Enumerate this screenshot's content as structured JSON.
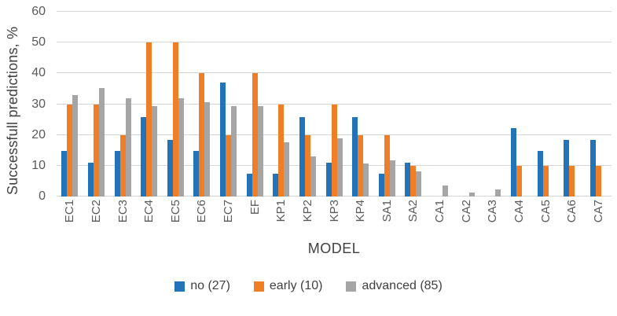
{
  "chart_data": {
    "type": "bar",
    "title": "",
    "ylabel": "Successfull predictions, %",
    "xlabel": "MODEL",
    "ylim": [
      0,
      60
    ],
    "yticks": [
      0,
      10,
      20,
      30,
      40,
      50,
      60
    ],
    "grid": true,
    "legend_position": "bottom",
    "categories": [
      "EC1",
      "EC2",
      "EC3",
      "EC4",
      "EC5",
      "EC6",
      "EC7",
      "EF",
      "KP1",
      "KP2",
      "KP3",
      "KP4",
      "SA1",
      "SA2",
      "CA1",
      "CA2",
      "CA3",
      "CA4",
      "CA5",
      "CA6",
      "CA7"
    ],
    "series": [
      {
        "name": "no (27)",
        "color": "#2273B8",
        "values": [
          14.8,
          11.1,
          14.8,
          25.9,
          18.5,
          14.8,
          37.0,
          7.4,
          7.4,
          25.9,
          11.1,
          25.9,
          7.4,
          11.1,
          0,
          0,
          0,
          22.2,
          14.8,
          18.5,
          18.5
        ]
      },
      {
        "name": "early (10)",
        "color": "#F07E26",
        "values": [
          30,
          30,
          20,
          50,
          50,
          40,
          20,
          40,
          30,
          20,
          30,
          20,
          20,
          10,
          0,
          0,
          0,
          10,
          10,
          10,
          10
        ]
      },
      {
        "name": "advanced (85)",
        "color": "#A5A5A5",
        "values": [
          32.9,
          35.3,
          31.8,
          29.4,
          31.8,
          30.6,
          29.4,
          29.4,
          17.6,
          12.9,
          18.8,
          10.6,
          11.8,
          8.2,
          3.5,
          1.2,
          2.4,
          0,
          0,
          0,
          0
        ]
      }
    ],
    "colors": {
      "gridline": "#D6D6D6",
      "tick_text": "#595959",
      "axis_title_text": "#404040",
      "legend_text": "#404040"
    }
  }
}
